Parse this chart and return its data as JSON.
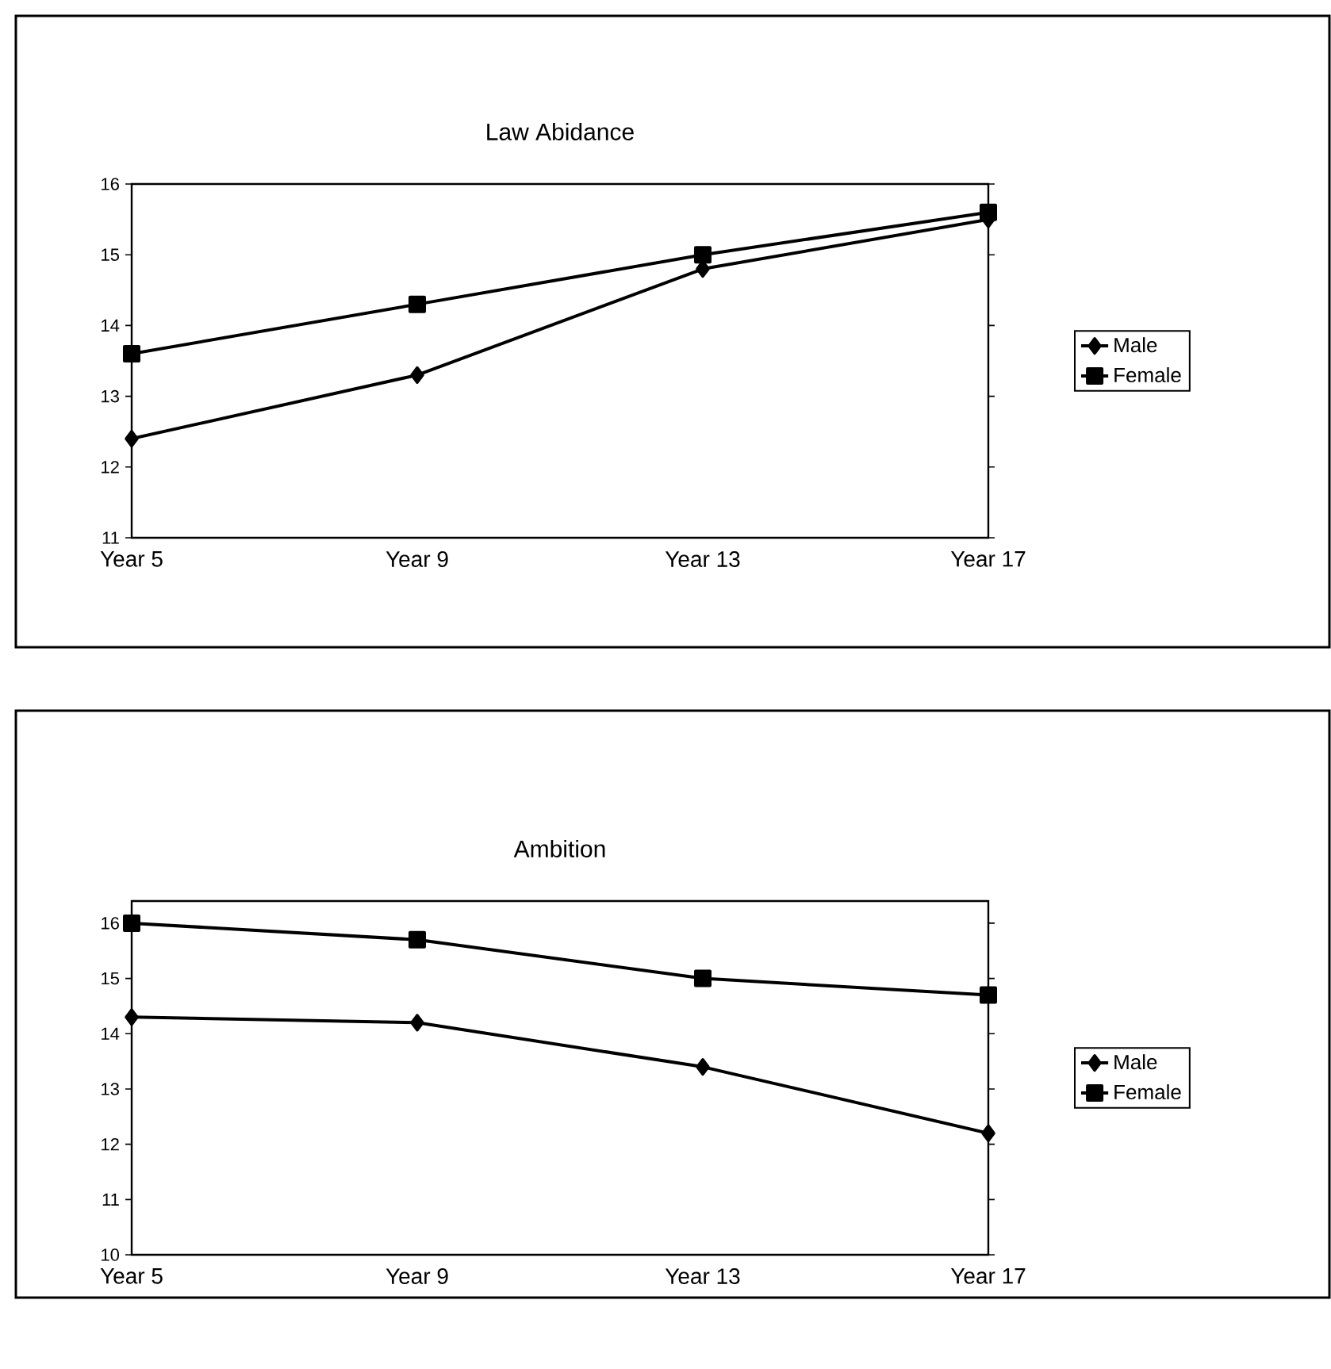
{
  "chart_data": [
    {
      "type": "line",
      "title": "Law Abidance",
      "categories": [
        "Year 5",
        "Year 9",
        "Year 13",
        "Year 17"
      ],
      "ylim": [
        11,
        16
      ],
      "yticks": [
        11,
        12,
        13,
        14,
        15,
        16
      ],
      "legend": "right",
      "grid": false,
      "series": [
        {
          "name": "Male",
          "color": "#000000",
          "marker": "diamond",
          "values": [
            12.4,
            13.3,
            14.8,
            15.5
          ]
        },
        {
          "name": "Female",
          "color": "#000000",
          "marker": "square",
          "values": [
            13.6,
            14.3,
            15.0,
            15.6
          ]
        }
      ]
    },
    {
      "type": "line",
      "title": "Ambition",
      "categories": [
        "Year 5",
        "Year 9",
        "Year 13",
        "Year 17"
      ],
      "ylim": [
        10,
        16.4
      ],
      "yticks": [
        10,
        11,
        12,
        13,
        14,
        15,
        16
      ],
      "legend": "right",
      "grid": false,
      "series": [
        {
          "name": "Male",
          "color": "#000000",
          "marker": "diamond",
          "values": [
            14.3,
            14.2,
            13.4,
            12.2
          ]
        },
        {
          "name": "Female",
          "color": "#000000",
          "marker": "square",
          "values": [
            16.0,
            15.7,
            15.0,
            14.7
          ]
        }
      ]
    }
  ]
}
